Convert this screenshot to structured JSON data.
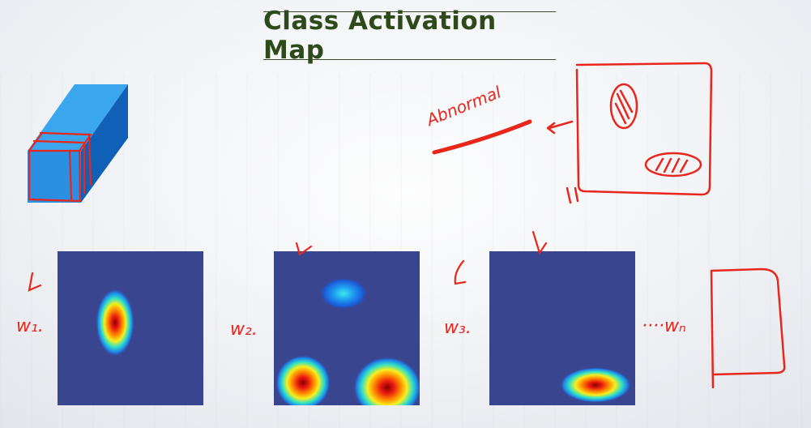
{
  "title": "Class Activation Map",
  "annotations": {
    "abnormal": "Abnormal",
    "w1": "w₁.",
    "w2": "w₂.",
    "w3": "w₃.",
    "wn": "····wₙ"
  },
  "colors": {
    "annotation": "#e8261c",
    "feature_map_bg": "#3a4590",
    "cube_front": "#2a8fe0",
    "cube_side": "#1060b8",
    "cube_top": "#3aa6ee",
    "title_text": "#2f4a1a"
  }
}
